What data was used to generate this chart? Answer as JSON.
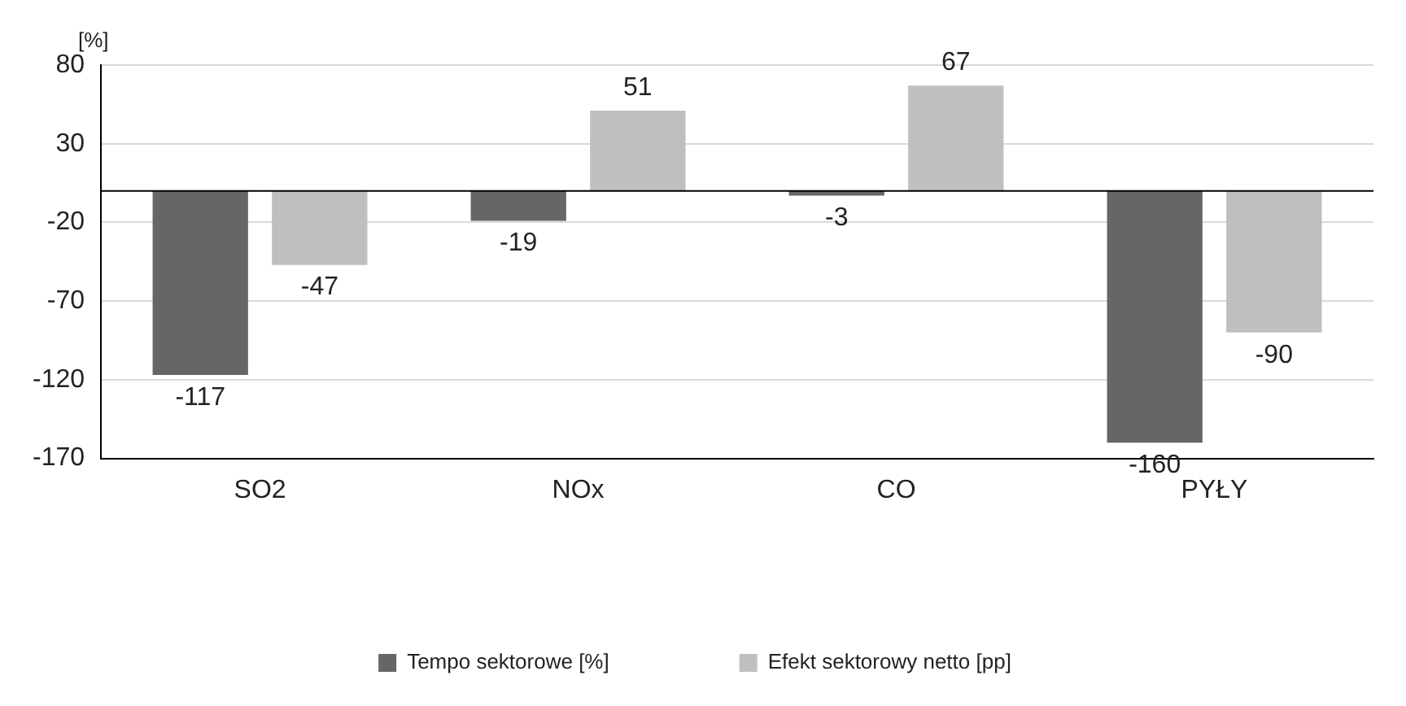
{
  "chart_data": {
    "type": "bar",
    "ylabel": "[%]",
    "categories": [
      "SO2",
      "NOx",
      "CO",
      "PYŁY"
    ],
    "series": [
      {
        "name": "Tempo sektorowe [%]",
        "color": "#666666",
        "values": [
          -117,
          -19,
          -3,
          -160
        ]
      },
      {
        "name": "Efekt sektorowy netto [pp]",
        "color": "#bfbfbf",
        "values": [
          -47,
          51,
          67,
          -90
        ]
      }
    ],
    "ylim": [
      -170,
      80
    ],
    "yticks": [
      -170,
      -120,
      -70,
      -20,
      30,
      80
    ],
    "grid": "y",
    "legend": "bottom",
    "data_labels": true,
    "ref_lines": [
      {
        "axis": "y",
        "value": 0,
        "color": "#000000"
      }
    ]
  }
}
